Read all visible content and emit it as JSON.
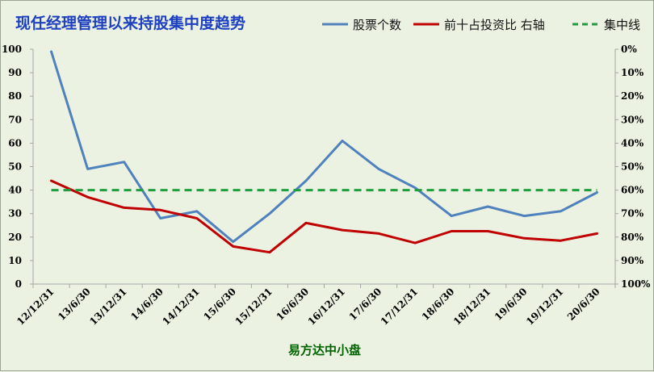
{
  "chart_data": {
    "type": "line",
    "title": "现任经理管理以来持股集中度趋势",
    "xlabel": "易方达中小盘",
    "categories": [
      "12/12/31",
      "13/6/30",
      "13/12/31",
      "14/6/30",
      "14/12/31",
      "15/6/30",
      "15/12/31",
      "16/6/30",
      "16/12/31",
      "17/6/30",
      "17/12/31",
      "18/6/30",
      "18/12/31",
      "19/6/30",
      "19/12/31",
      "20/6/30"
    ],
    "left_axis": {
      "ylim": [
        0,
        100
      ],
      "ticks": [
        "0",
        "10",
        "20",
        "30",
        "40",
        "50",
        "60",
        "70",
        "80",
        "90",
        "100"
      ]
    },
    "right_axis": {
      "ylim": [
        0,
        1
      ],
      "inverted": true,
      "ticks": [
        "0%",
        "10%",
        "20%",
        "30%",
        "40%",
        "50%",
        "60%",
        "70%",
        "80%",
        "90%",
        "100%"
      ]
    },
    "grid": false,
    "legend_position": "top",
    "series": [
      {
        "name": "股票个数",
        "axis": "left",
        "color": "#4F81BD",
        "style": "solid",
        "values": [
          99,
          49,
          52,
          28,
          31,
          18,
          30,
          44,
          61,
          49,
          41,
          29,
          33,
          29,
          31,
          39
        ]
      },
      {
        "name": "前十占投资比 右轴",
        "axis": "right",
        "color": "#C00000",
        "style": "solid",
        "values": [
          0.56,
          0.63,
          0.675,
          0.685,
          0.72,
          0.84,
          0.865,
          0.74,
          0.77,
          0.785,
          0.825,
          0.775,
          0.775,
          0.805,
          0.815,
          0.785
        ]
      },
      {
        "name": "集中线",
        "axis": "right",
        "color": "#1F9E3F",
        "style": "dashed",
        "values": [
          0.6,
          0.6,
          0.6,
          0.6,
          0.6,
          0.6,
          0.6,
          0.6,
          0.6,
          0.6,
          0.6,
          0.6,
          0.6,
          0.6,
          0.6,
          0.6
        ]
      }
    ]
  }
}
